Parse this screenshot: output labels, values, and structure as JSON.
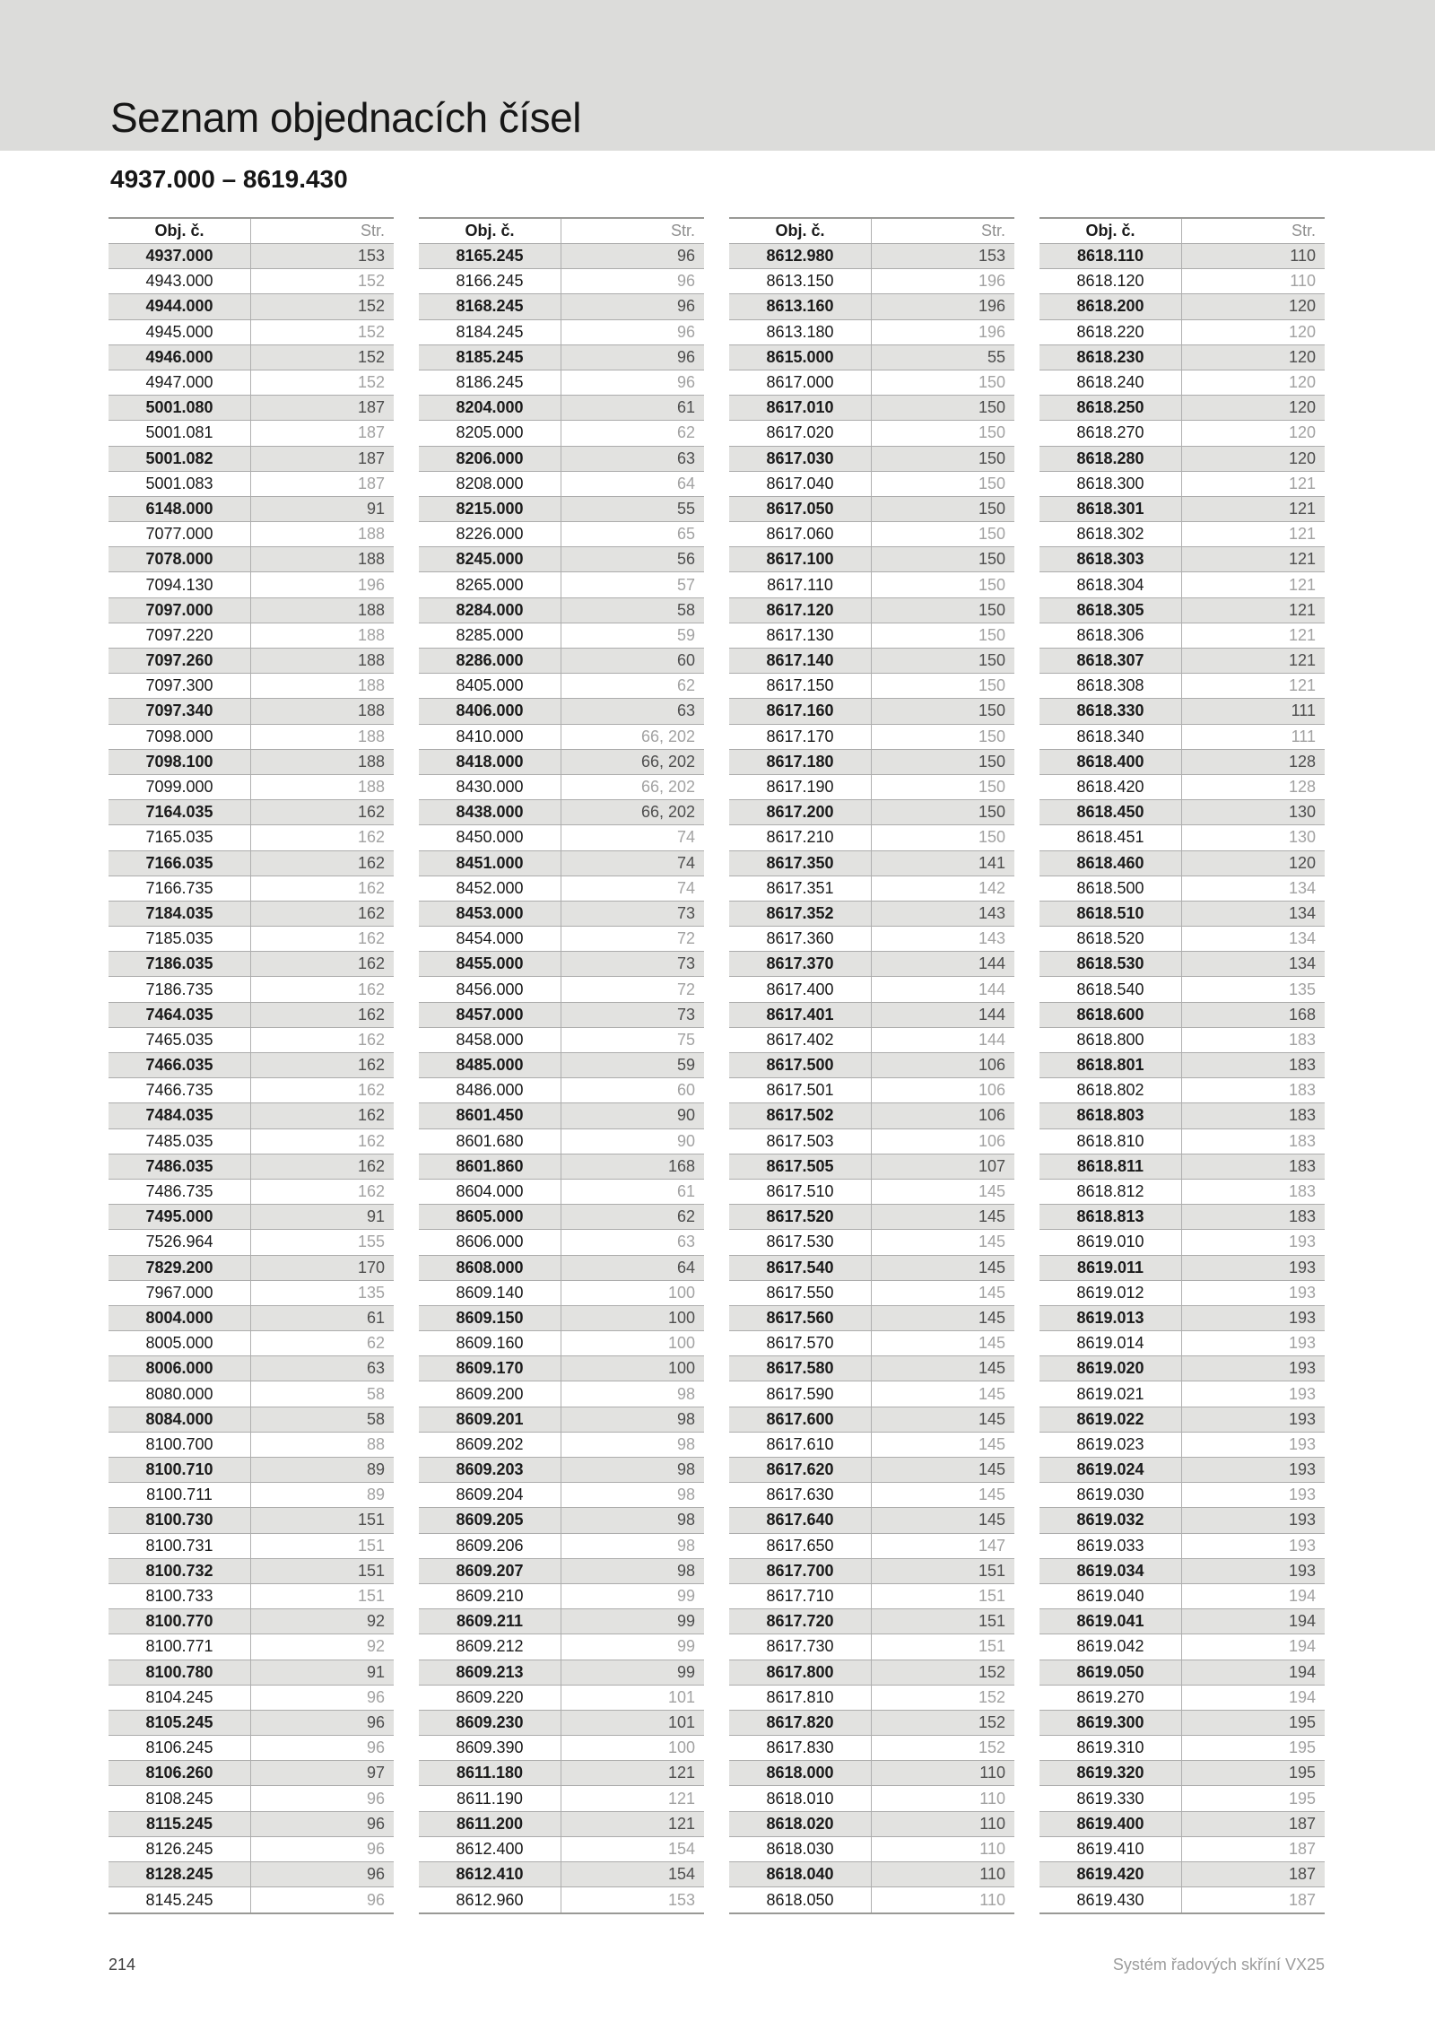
{
  "page": {
    "title": "Seznam objednacích čísel",
    "subtitle": "4937.000 – 8619.430",
    "footer": {
      "page_number": "214",
      "product": "Systém řadových skříní VX25"
    }
  },
  "table_headers": {
    "obj": "Obj. č.",
    "str": "Str."
  },
  "colors": {
    "header_band": "#dcdcda",
    "shaded_row": "#e2e2e0",
    "rule_line": "#acacac"
  },
  "tables": [
    [
      [
        "4937.000",
        "153"
      ],
      [
        "4943.000",
        "152"
      ],
      [
        "4944.000",
        "152"
      ],
      [
        "4945.000",
        "152"
      ],
      [
        "4946.000",
        "152"
      ],
      [
        "4947.000",
        "152"
      ],
      [
        "5001.080",
        "187"
      ],
      [
        "5001.081",
        "187"
      ],
      [
        "5001.082",
        "187"
      ],
      [
        "5001.083",
        "187"
      ],
      [
        "6148.000",
        "91"
      ],
      [
        "7077.000",
        "188"
      ],
      [
        "7078.000",
        "188"
      ],
      [
        "7094.130",
        "196"
      ],
      [
        "7097.000",
        "188"
      ],
      [
        "7097.220",
        "188"
      ],
      [
        "7097.260",
        "188"
      ],
      [
        "7097.300",
        "188"
      ],
      [
        "7097.340",
        "188"
      ],
      [
        "7098.000",
        "188"
      ],
      [
        "7098.100",
        "188"
      ],
      [
        "7099.000",
        "188"
      ],
      [
        "7164.035",
        "162"
      ],
      [
        "7165.035",
        "162"
      ],
      [
        "7166.035",
        "162"
      ],
      [
        "7166.735",
        "162"
      ],
      [
        "7184.035",
        "162"
      ],
      [
        "7185.035",
        "162"
      ],
      [
        "7186.035",
        "162"
      ],
      [
        "7186.735",
        "162"
      ],
      [
        "7464.035",
        "162"
      ],
      [
        "7465.035",
        "162"
      ],
      [
        "7466.035",
        "162"
      ],
      [
        "7466.735",
        "162"
      ],
      [
        "7484.035",
        "162"
      ],
      [
        "7485.035",
        "162"
      ],
      [
        "7486.035",
        "162"
      ],
      [
        "7486.735",
        "162"
      ],
      [
        "7495.000",
        "91"
      ],
      [
        "7526.964",
        "155"
      ],
      [
        "7829.200",
        "170"
      ],
      [
        "7967.000",
        "135"
      ],
      [
        "8004.000",
        "61"
      ],
      [
        "8005.000",
        "62"
      ],
      [
        "8006.000",
        "63"
      ],
      [
        "8080.000",
        "58"
      ],
      [
        "8084.000",
        "58"
      ],
      [
        "8100.700",
        "88"
      ],
      [
        "8100.710",
        "89"
      ],
      [
        "8100.711",
        "89"
      ],
      [
        "8100.730",
        "151"
      ],
      [
        "8100.731",
        "151"
      ],
      [
        "8100.732",
        "151"
      ],
      [
        "8100.733",
        "151"
      ],
      [
        "8100.770",
        "92"
      ],
      [
        "8100.771",
        "92"
      ],
      [
        "8100.780",
        "91"
      ],
      [
        "8104.245",
        "96"
      ],
      [
        "8105.245",
        "96"
      ],
      [
        "8106.245",
        "96"
      ],
      [
        "8106.260",
        "97"
      ],
      [
        "8108.245",
        "96"
      ],
      [
        "8115.245",
        "96"
      ],
      [
        "8126.245",
        "96"
      ],
      [
        "8128.245",
        "96"
      ],
      [
        "8145.245",
        "96"
      ]
    ],
    [
      [
        "8165.245",
        "96"
      ],
      [
        "8166.245",
        "96"
      ],
      [
        "8168.245",
        "96"
      ],
      [
        "8184.245",
        "96"
      ],
      [
        "8185.245",
        "96"
      ],
      [
        "8186.245",
        "96"
      ],
      [
        "8204.000",
        "61"
      ],
      [
        "8205.000",
        "62"
      ],
      [
        "8206.000",
        "63"
      ],
      [
        "8208.000",
        "64"
      ],
      [
        "8215.000",
        "55"
      ],
      [
        "8226.000",
        "65"
      ],
      [
        "8245.000",
        "56"
      ],
      [
        "8265.000",
        "57"
      ],
      [
        "8284.000",
        "58"
      ],
      [
        "8285.000",
        "59"
      ],
      [
        "8286.000",
        "60"
      ],
      [
        "8405.000",
        "62"
      ],
      [
        "8406.000",
        "63"
      ],
      [
        "8410.000",
        "66, 202"
      ],
      [
        "8418.000",
        "66, 202"
      ],
      [
        "8430.000",
        "66, 202"
      ],
      [
        "8438.000",
        "66, 202"
      ],
      [
        "8450.000",
        "74"
      ],
      [
        "8451.000",
        "74"
      ],
      [
        "8452.000",
        "74"
      ],
      [
        "8453.000",
        "73"
      ],
      [
        "8454.000",
        "72"
      ],
      [
        "8455.000",
        "73"
      ],
      [
        "8456.000",
        "72"
      ],
      [
        "8457.000",
        "73"
      ],
      [
        "8458.000",
        "75"
      ],
      [
        "8485.000",
        "59"
      ],
      [
        "8486.000",
        "60"
      ],
      [
        "8601.450",
        "90"
      ],
      [
        "8601.680",
        "90"
      ],
      [
        "8601.860",
        "168"
      ],
      [
        "8604.000",
        "61"
      ],
      [
        "8605.000",
        "62"
      ],
      [
        "8606.000",
        "63"
      ],
      [
        "8608.000",
        "64"
      ],
      [
        "8609.140",
        "100"
      ],
      [
        "8609.150",
        "100"
      ],
      [
        "8609.160",
        "100"
      ],
      [
        "8609.170",
        "100"
      ],
      [
        "8609.200",
        "98"
      ],
      [
        "8609.201",
        "98"
      ],
      [
        "8609.202",
        "98"
      ],
      [
        "8609.203",
        "98"
      ],
      [
        "8609.204",
        "98"
      ],
      [
        "8609.205",
        "98"
      ],
      [
        "8609.206",
        "98"
      ],
      [
        "8609.207",
        "98"
      ],
      [
        "8609.210",
        "99"
      ],
      [
        "8609.211",
        "99"
      ],
      [
        "8609.212",
        "99"
      ],
      [
        "8609.213",
        "99"
      ],
      [
        "8609.220",
        "101"
      ],
      [
        "8609.230",
        "101"
      ],
      [
        "8609.390",
        "100"
      ],
      [
        "8611.180",
        "121"
      ],
      [
        "8611.190",
        "121"
      ],
      [
        "8611.200",
        "121"
      ],
      [
        "8612.400",
        "154"
      ],
      [
        "8612.410",
        "154"
      ],
      [
        "8612.960",
        "153"
      ]
    ],
    [
      [
        "8612.980",
        "153"
      ],
      [
        "8613.150",
        "196"
      ],
      [
        "8613.160",
        "196"
      ],
      [
        "8613.180",
        "196"
      ],
      [
        "8615.000",
        "55"
      ],
      [
        "8617.000",
        "150"
      ],
      [
        "8617.010",
        "150"
      ],
      [
        "8617.020",
        "150"
      ],
      [
        "8617.030",
        "150"
      ],
      [
        "8617.040",
        "150"
      ],
      [
        "8617.050",
        "150"
      ],
      [
        "8617.060",
        "150"
      ],
      [
        "8617.100",
        "150"
      ],
      [
        "8617.110",
        "150"
      ],
      [
        "8617.120",
        "150"
      ],
      [
        "8617.130",
        "150"
      ],
      [
        "8617.140",
        "150"
      ],
      [
        "8617.150",
        "150"
      ],
      [
        "8617.160",
        "150"
      ],
      [
        "8617.170",
        "150"
      ],
      [
        "8617.180",
        "150"
      ],
      [
        "8617.190",
        "150"
      ],
      [
        "8617.200",
        "150"
      ],
      [
        "8617.210",
        "150"
      ],
      [
        "8617.350",
        "141"
      ],
      [
        "8617.351",
        "142"
      ],
      [
        "8617.352",
        "143"
      ],
      [
        "8617.360",
        "143"
      ],
      [
        "8617.370",
        "144"
      ],
      [
        "8617.400",
        "144"
      ],
      [
        "8617.401",
        "144"
      ],
      [
        "8617.402",
        "144"
      ],
      [
        "8617.500",
        "106"
      ],
      [
        "8617.501",
        "106"
      ],
      [
        "8617.502",
        "106"
      ],
      [
        "8617.503",
        "106"
      ],
      [
        "8617.505",
        "107"
      ],
      [
        "8617.510",
        "145"
      ],
      [
        "8617.520",
        "145"
      ],
      [
        "8617.530",
        "145"
      ],
      [
        "8617.540",
        "145"
      ],
      [
        "8617.550",
        "145"
      ],
      [
        "8617.560",
        "145"
      ],
      [
        "8617.570",
        "145"
      ],
      [
        "8617.580",
        "145"
      ],
      [
        "8617.590",
        "145"
      ],
      [
        "8617.600",
        "145"
      ],
      [
        "8617.610",
        "145"
      ],
      [
        "8617.620",
        "145"
      ],
      [
        "8617.630",
        "145"
      ],
      [
        "8617.640",
        "145"
      ],
      [
        "8617.650",
        "147"
      ],
      [
        "8617.700",
        "151"
      ],
      [
        "8617.710",
        "151"
      ],
      [
        "8617.720",
        "151"
      ],
      [
        "8617.730",
        "151"
      ],
      [
        "8617.800",
        "152"
      ],
      [
        "8617.810",
        "152"
      ],
      [
        "8617.820",
        "152"
      ],
      [
        "8617.830",
        "152"
      ],
      [
        "8618.000",
        "110"
      ],
      [
        "8618.010",
        "110"
      ],
      [
        "8618.020",
        "110"
      ],
      [
        "8618.030",
        "110"
      ],
      [
        "8618.040",
        "110"
      ],
      [
        "8618.050",
        "110"
      ]
    ],
    [
      [
        "8618.110",
        "110"
      ],
      [
        "8618.120",
        "110"
      ],
      [
        "8618.200",
        "120"
      ],
      [
        "8618.220",
        "120"
      ],
      [
        "8618.230",
        "120"
      ],
      [
        "8618.240",
        "120"
      ],
      [
        "8618.250",
        "120"
      ],
      [
        "8618.270",
        "120"
      ],
      [
        "8618.280",
        "120"
      ],
      [
        "8618.300",
        "121"
      ],
      [
        "8618.301",
        "121"
      ],
      [
        "8618.302",
        "121"
      ],
      [
        "8618.303",
        "121"
      ],
      [
        "8618.304",
        "121"
      ],
      [
        "8618.305",
        "121"
      ],
      [
        "8618.306",
        "121"
      ],
      [
        "8618.307",
        "121"
      ],
      [
        "8618.308",
        "121"
      ],
      [
        "8618.330",
        "111"
      ],
      [
        "8618.340",
        "111"
      ],
      [
        "8618.400",
        "128"
      ],
      [
        "8618.420",
        "128"
      ],
      [
        "8618.450",
        "130"
      ],
      [
        "8618.451",
        "130"
      ],
      [
        "8618.460",
        "120"
      ],
      [
        "8618.500",
        "134"
      ],
      [
        "8618.510",
        "134"
      ],
      [
        "8618.520",
        "134"
      ],
      [
        "8618.530",
        "134"
      ],
      [
        "8618.540",
        "135"
      ],
      [
        "8618.600",
        "168"
      ],
      [
        "8618.800",
        "183"
      ],
      [
        "8618.801",
        "183"
      ],
      [
        "8618.802",
        "183"
      ],
      [
        "8618.803",
        "183"
      ],
      [
        "8618.810",
        "183"
      ],
      [
        "8618.811",
        "183"
      ],
      [
        "8618.812",
        "183"
      ],
      [
        "8618.813",
        "183"
      ],
      [
        "8619.010",
        "193"
      ],
      [
        "8619.011",
        "193"
      ],
      [
        "8619.012",
        "193"
      ],
      [
        "8619.013",
        "193"
      ],
      [
        "8619.014",
        "193"
      ],
      [
        "8619.020",
        "193"
      ],
      [
        "8619.021",
        "193"
      ],
      [
        "8619.022",
        "193"
      ],
      [
        "8619.023",
        "193"
      ],
      [
        "8619.024",
        "193"
      ],
      [
        "8619.030",
        "193"
      ],
      [
        "8619.032",
        "193"
      ],
      [
        "8619.033",
        "193"
      ],
      [
        "8619.034",
        "193"
      ],
      [
        "8619.040",
        "194"
      ],
      [
        "8619.041",
        "194"
      ],
      [
        "8619.042",
        "194"
      ],
      [
        "8619.050",
        "194"
      ],
      [
        "8619.270",
        "194"
      ],
      [
        "8619.300",
        "195"
      ],
      [
        "8619.310",
        "195"
      ],
      [
        "8619.320",
        "195"
      ],
      [
        "8619.330",
        "195"
      ],
      [
        "8619.400",
        "187"
      ],
      [
        "8619.410",
        "187"
      ],
      [
        "8619.420",
        "187"
      ],
      [
        "8619.430",
        "187"
      ]
    ]
  ]
}
